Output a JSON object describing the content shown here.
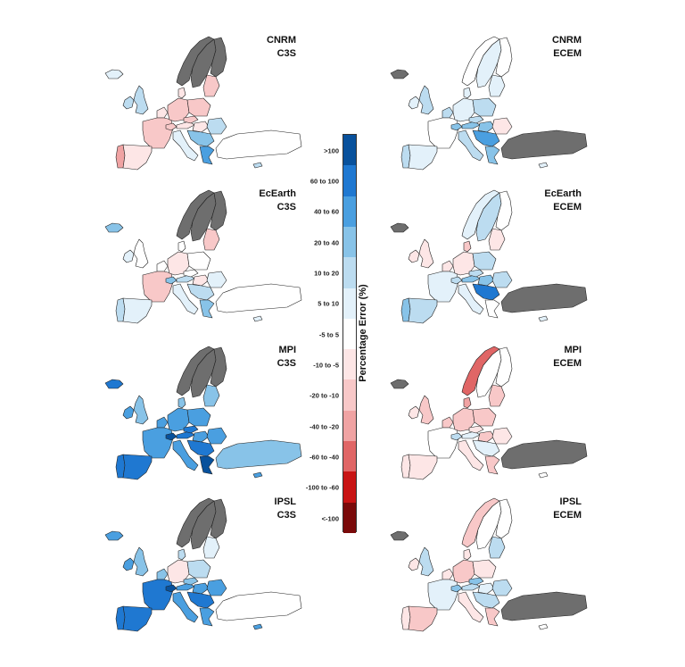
{
  "chart_data": {
    "type": "choropleth-map-grid",
    "colorbar": {
      "title": "Percentage Error (%)",
      "bins": [
        {
          "label": ">100",
          "color": "#08519c"
        },
        {
          "label": "60 to 100",
          "color": "#1f78d1"
        },
        {
          "label": "40 to 60",
          "color": "#4a9fe0"
        },
        {
          "label": "20 to 40",
          "color": "#88c3e8"
        },
        {
          "label": "10 to 20",
          "color": "#bcdcf0"
        },
        {
          "label": "5 to 10",
          "color": "#e3f1fa"
        },
        {
          "label": "-5 to 5",
          "color": "#ffffff"
        },
        {
          "label": "-10 to -5",
          "color": "#fde6e6"
        },
        {
          "label": "-20 to -10",
          "color": "#f8c8c8"
        },
        {
          "label": "-40 to -20",
          "color": "#f0a3a3"
        },
        {
          "label": "-60 to -40",
          "color": "#e06666"
        },
        {
          "label": "-100 to -60",
          "color": "#c81414"
        },
        {
          "label": "<-100",
          "color": "#7a0a0a"
        }
      ],
      "nodata_color": "#6e6e6e"
    },
    "panels": [
      {
        "model": "CNRM",
        "dataset": "C3S",
        "regions": {
          "ISL": "5 to 10",
          "NOR": "nodata",
          "SWE": "nodata",
          "FIN": "nodata",
          "IRL": "10 to 20",
          "GBR": "10 to 20",
          "PRT": "-40 to -20",
          "ESP": "-10 to -5",
          "FRA": "-20 to -10",
          "BNL": "-10 to -5",
          "DEU": "-20 to -10",
          "DNK": "-10 to -5",
          "POL": "-20 to -10",
          "BAL": "-20 to -10",
          "CHE": "-20 to -10",
          "ITA": "5 to 10",
          "AUT": "-10 to -5",
          "CZE": "-20 to -10",
          "HUN": "-10 to -5",
          "ROU": "10 to 20",
          "BAK": "20 to 40",
          "GRC": "40 to 60",
          "TUR": "-5 to 5",
          "CYP": "10 to 20"
        }
      },
      {
        "model": "CNRM",
        "dataset": "ECEM",
        "regions": {
          "ISL": "nodata",
          "NOR": "-5 to 5",
          "SWE": "5 to 10",
          "FIN": "-5 to 5",
          "IRL": "5 to 10",
          "GBR": "10 to 20",
          "PRT": "10 to 20",
          "ESP": "5 to 10",
          "FRA": "-5 to 5",
          "BNL": "10 to 20",
          "DEU": "5 to 10",
          "DNK": "5 to 10",
          "POL": "10 to 20",
          "BAL": "5 to 10",
          "CHE": "20 to 40",
          "ITA": "10 to 20",
          "AUT": "20 to 40",
          "CZE": "10 to 20",
          "HUN": "20 to 40",
          "ROU": "-10 to -5",
          "BAK": "40 to 60",
          "GRC": "20 to 40",
          "TUR": "nodata",
          "CYP": "5 to 10"
        }
      },
      {
        "model": "EcEarth",
        "dataset": "C3S",
        "regions": {
          "ISL": "20 to 40",
          "NOR": "nodata",
          "SWE": "nodata",
          "FIN": "nodata",
          "IRL": "5 to 10",
          "GBR": "-5 to 5",
          "PRT": "10 to 20",
          "ESP": "5 to 10",
          "FRA": "-20 to -10",
          "BNL": "-5 to 5",
          "DEU": "-10 to -5",
          "DNK": "-5 to 5",
          "POL": "-5 to 5",
          "BAL": "-20 to -10",
          "CHE": "20 to 40",
          "ITA": "5 to 10",
          "AUT": "10 to 20",
          "CZE": "-5 to 5",
          "HUN": "-10 to -5",
          "ROU": "5 to 10",
          "BAK": "10 to 20",
          "GRC": "20 to 40",
          "TUR": "-5 to 5",
          "CYP": "5 to 10"
        }
      },
      {
        "model": "EcEarth",
        "dataset": "ECEM",
        "regions": {
          "ISL": "nodata",
          "NOR": "5 to 10",
          "SWE": "10 to 20",
          "FIN": "-5 to 5",
          "IRL": "-10 to -5",
          "GBR": "-10 to -5",
          "PRT": "20 to 40",
          "ESP": "10 to 20",
          "FRA": "5 to 10",
          "BNL": "-10 to -5",
          "DEU": "-10 to -5",
          "DNK": "-20 to -10",
          "POL": "10 to 20",
          "BAL": "-10 to -5",
          "CHE": "10 to 20",
          "ITA": "5 to 10",
          "AUT": "20 to 40",
          "CZE": "10 to 20",
          "HUN": "20 to 40",
          "ROU": "10 to 20",
          "BAK": "60 to 100",
          "GRC": "-5 to 5",
          "TUR": "nodata",
          "CYP": "5 to 10"
        }
      },
      {
        "model": "MPI",
        "dataset": "C3S",
        "regions": {
          "ISL": "60 to 100",
          "NOR": "nodata",
          "SWE": "nodata",
          "FIN": "nodata",
          "IRL": "40 to 60",
          "GBR": "20 to 40",
          "PRT": "60 to 100",
          "ESP": "60 to 100",
          "FRA": "40 to 60",
          "BNL": "40 to 60",
          "DEU": "40 to 60",
          "DNK": "20 to 40",
          "POL": "40 to 60",
          "BAL": "20 to 40",
          "CHE": ">100",
          "ITA": "40 to 60",
          "AUT": "60 to 100",
          "CZE": "60 to 100",
          "HUN": "40 to 60",
          "ROU": "40 to 60",
          "BAK": "60 to 100",
          "GRC": ">100",
          "TUR": "20 to 40",
          "CYP": "40 to 60"
        }
      },
      {
        "model": "MPI",
        "dataset": "ECEM",
        "regions": {
          "ISL": "nodata",
          "NOR": "-60 to -40",
          "SWE": "-5 to 5",
          "FIN": "-5 to 5",
          "IRL": "-10 to -5",
          "GBR": "-20 to -10",
          "PRT": "-10 to -5",
          "ESP": "-10 to -5",
          "FRA": "-5 to 5",
          "BNL": "-20 to -10",
          "DEU": "-20 to -10",
          "DNK": "-40 to -20",
          "POL": "-20 to -10",
          "BAL": "-20 to -10",
          "CHE": "10 to 20",
          "ITA": "-10 to -5",
          "AUT": "5 to 10",
          "CZE": "-10 to -5",
          "HUN": "-20 to -10",
          "ROU": "-10 to -5",
          "BAK": "5 to 10",
          "GRC": "-20 to -10",
          "TUR": "nodata",
          "CYP": "-5 to 5"
        }
      },
      {
        "model": "IPSL",
        "dataset": "C3S",
        "regions": {
          "ISL": "40 to 60",
          "NOR": "nodata",
          "SWE": "nodata",
          "FIN": "nodata",
          "IRL": "40 to 60",
          "GBR": "20 to 40",
          "PRT": "60 to 100",
          "ESP": "60 to 100",
          "FRA": "60 to 100",
          "BNL": "20 to 40",
          "DEU": "-10 to -5",
          "DNK": "10 to 20",
          "POL": "10 to 20",
          "BAL": "5 to 10",
          "CHE": ">100",
          "ITA": "40 to 60",
          "AUT": "40 to 60",
          "CZE": "20 to 40",
          "HUN": "40 to 60",
          "ROU": "40 to 60",
          "BAK": "60 to 100",
          "GRC": "40 to 60",
          "TUR": "-5 to 5",
          "CYP": "40 to 60"
        }
      },
      {
        "model": "IPSL",
        "dataset": "ECEM",
        "regions": {
          "ISL": "nodata",
          "NOR": "-20 to -10",
          "SWE": "-5 to 5",
          "FIN": "-5 to 5",
          "IRL": "-10 to -5",
          "GBR": "10 to 20",
          "PRT": "-10 to -5",
          "ESP": "-20 to -10",
          "FRA": "5 to 10",
          "BNL": "-10 to -5",
          "DEU": "-20 to -10",
          "DNK": "-10 to -5",
          "POL": "-10 to -5",
          "BAL": "10 to 20",
          "CHE": "20 to 40",
          "ITA": "-10 to -5",
          "AUT": "10 to 20",
          "CZE": "20 to 40",
          "HUN": "5 to 10",
          "ROU": "10 to 20",
          "BAK": "10 to 20",
          "GRC": "-20 to -10",
          "TUR": "nodata",
          "CYP": "-5 to 5"
        }
      }
    ]
  }
}
